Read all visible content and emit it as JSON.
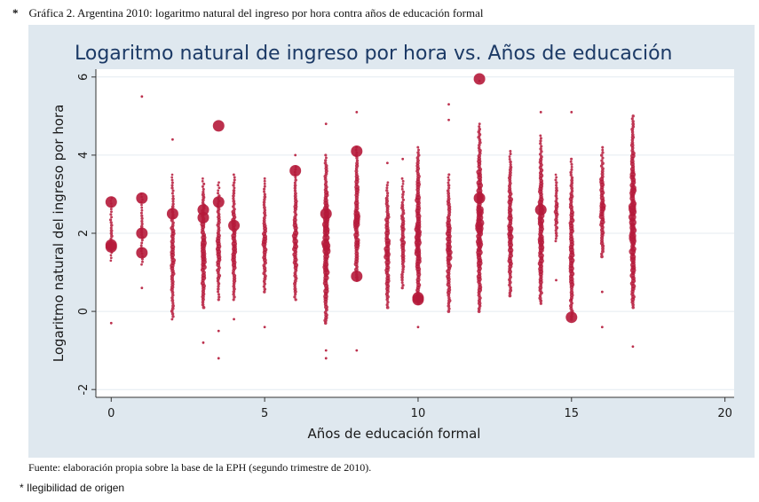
{
  "caption": {
    "marker": "*",
    "text": "Gráfica 2. Argentina 2010: logaritmo natural del ingreso por hora contra años de educación formal"
  },
  "source_note": "Fuente: elaboración propia sobre la base de la EPH (segundo trimestre de 2010).",
  "footnote": "* Ilegibilidad de origen",
  "colors": {
    "marker": "#b5193a",
    "panel": "#dfe8ef",
    "plot": "#ffffff",
    "grid": "#e4ebf1",
    "title": "#1c3a66"
  },
  "chart_data": {
    "type": "scatter",
    "title": "Logaritmo natural de ingreso por hora vs. Años de educación",
    "xlabel": "Años de educación formal",
    "ylabel": "Logaritmo natural del ingreso por hora",
    "xlim": [
      -0.5,
      20.3
    ],
    "ylim": [
      -2.2,
      6.2
    ],
    "xticks": [
      0,
      5,
      10,
      15,
      20
    ],
    "yticks": [
      -2,
      0,
      2,
      4,
      6
    ],
    "grid": true,
    "legend": "none",
    "weighted_markers": true,
    "columns": [
      {
        "x": 0,
        "ymin": 1.3,
        "ymax": 2.9,
        "dense": 0.2,
        "outliers": [
          -0.3
        ],
        "big": [
          1.65,
          1.7,
          2.8
        ]
      },
      {
        "x": 1,
        "ymin": 1.2,
        "ymax": 3.0,
        "dense": 0.2,
        "outliers": [
          0.6,
          5.5
        ],
        "big": [
          2.0,
          1.5,
          2.9
        ]
      },
      {
        "x": 2,
        "ymin": -0.2,
        "ymax": 3.5,
        "dense": 0.5,
        "outliers": [
          4.4
        ],
        "big": [
          2.5
        ]
      },
      {
        "x": 3,
        "ymin": 0.1,
        "ymax": 3.4,
        "dense": 0.7,
        "outliers": [
          -0.8
        ],
        "big": [
          2.4,
          2.6
        ]
      },
      {
        "x": 3.5,
        "ymin": 0.3,
        "ymax": 3.3,
        "dense": 0.5,
        "outliers": [
          -0.5,
          -1.2
        ],
        "big": [
          4.75,
          2.8
        ]
      },
      {
        "x": 4,
        "ymin": 0.3,
        "ymax": 3.5,
        "dense": 0.6,
        "outliers": [
          -0.2
        ],
        "big": [
          2.2
        ]
      },
      {
        "x": 5,
        "ymin": 0.5,
        "ymax": 3.4,
        "dense": 0.5,
        "outliers": [
          -0.4
        ],
        "big": []
      },
      {
        "x": 6,
        "ymin": 0.3,
        "ymax": 3.7,
        "dense": 0.6,
        "outliers": [
          4.0
        ],
        "big": [
          3.6
        ]
      },
      {
        "x": 7,
        "ymin": -0.3,
        "ymax": 4.0,
        "dense": 1.0,
        "outliers": [
          -1.0,
          -1.2,
          4.8
        ],
        "big": [
          2.5
        ]
      },
      {
        "x": 8,
        "ymin": 0.8,
        "ymax": 4.2,
        "dense": 0.8,
        "outliers": [
          -1.0,
          5.1
        ],
        "big": [
          0.9,
          4.1
        ]
      },
      {
        "x": 9,
        "ymin": 0.1,
        "ymax": 3.3,
        "dense": 0.7,
        "outliers": [
          3.8
        ],
        "big": []
      },
      {
        "x": 9.5,
        "ymin": 0.6,
        "ymax": 3.4,
        "dense": 0.5,
        "outliers": [
          3.9
        ],
        "big": []
      },
      {
        "x": 10,
        "ymin": 0.2,
        "ymax": 4.2,
        "dense": 0.9,
        "outliers": [
          -0.4
        ],
        "big": [
          0.3,
          0.35
        ]
      },
      {
        "x": 11,
        "ymin": 0.0,
        "ymax": 3.5,
        "dense": 0.7,
        "outliers": [
          5.3,
          4.9
        ],
        "big": []
      },
      {
        "x": 12,
        "ymin": 0.0,
        "ymax": 4.8,
        "dense": 1.0,
        "outliers": [
          5.9
        ],
        "big": [
          5.95,
          2.9
        ]
      },
      {
        "x": 13,
        "ymin": 0.4,
        "ymax": 4.1,
        "dense": 0.7,
        "outliers": [],
        "big": []
      },
      {
        "x": 14,
        "ymin": 0.2,
        "ymax": 4.5,
        "dense": 0.8,
        "outliers": [
          5.1
        ],
        "big": [
          2.6
        ]
      },
      {
        "x": 14.5,
        "ymin": 1.8,
        "ymax": 3.5,
        "dense": 0.4,
        "outliers": [
          0.8
        ],
        "big": []
      },
      {
        "x": 15,
        "ymin": -0.2,
        "ymax": 3.9,
        "dense": 0.7,
        "outliers": [
          5.1,
          0.3
        ],
        "big": [
          -0.15
        ]
      },
      {
        "x": 16,
        "ymin": 1.4,
        "ymax": 4.2,
        "dense": 0.7,
        "outliers": [
          -0.4,
          0.5
        ],
        "big": []
      },
      {
        "x": 17,
        "ymin": 0.1,
        "ymax": 5.0,
        "dense": 1.0,
        "outliers": [
          -0.9
        ],
        "big": []
      }
    ]
  }
}
